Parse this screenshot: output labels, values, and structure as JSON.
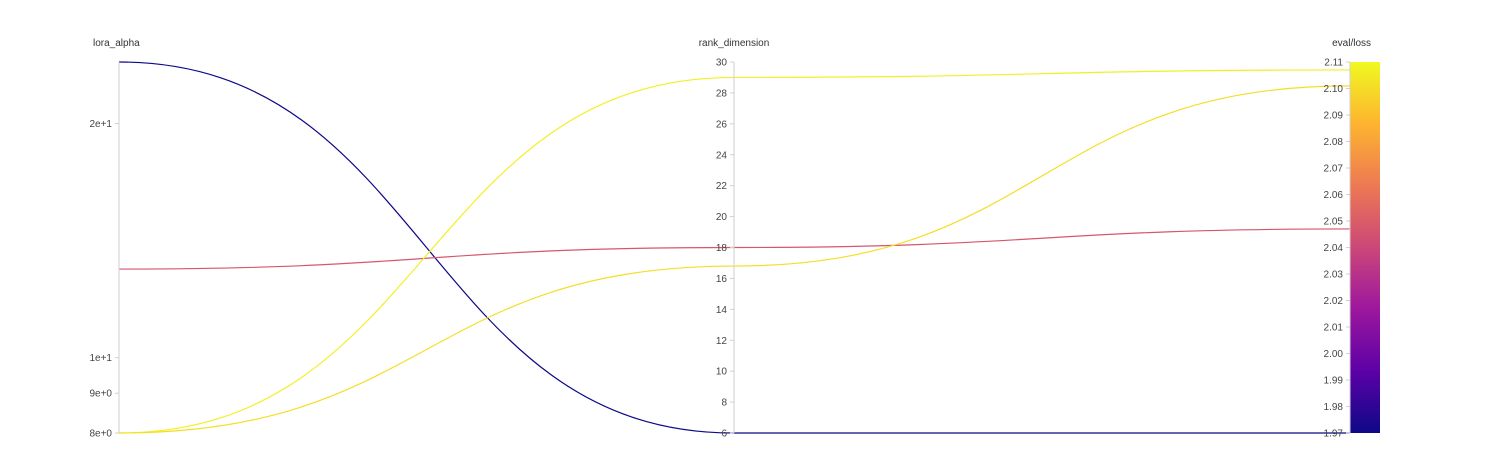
{
  "chart_data": {
    "type": "parallel_coordinates",
    "dimensions": [
      {
        "key": "lora_alpha",
        "label": "lora_alpha",
        "scale": "log",
        "range": [
          8,
          24
        ],
        "ticks": [
          {
            "value": 8,
            "label": "8e+0"
          },
          {
            "value": 9,
            "label": "9e+0"
          },
          {
            "value": 10,
            "label": "1e+1"
          },
          {
            "value": 20,
            "label": "2e+1"
          }
        ]
      },
      {
        "key": "rank_dimension",
        "label": "rank_dimension",
        "scale": "linear",
        "range": [
          6,
          30
        ],
        "ticks": [
          {
            "value": 6,
            "label": "6"
          },
          {
            "value": 8,
            "label": "8"
          },
          {
            "value": 10,
            "label": "10"
          },
          {
            "value": 12,
            "label": "12"
          },
          {
            "value": 14,
            "label": "14"
          },
          {
            "value": 16,
            "label": "16"
          },
          {
            "value": 18,
            "label": "18"
          },
          {
            "value": 20,
            "label": "20"
          },
          {
            "value": 22,
            "label": "22"
          },
          {
            "value": 24,
            "label": "24"
          },
          {
            "value": 26,
            "label": "26"
          },
          {
            "value": 28,
            "label": "28"
          },
          {
            "value": 30,
            "label": "30"
          }
        ]
      },
      {
        "key": "eval_loss",
        "label": "eval/loss",
        "scale": "linear",
        "range": [
          1.97,
          2.11
        ],
        "ticks": [
          {
            "value": 1.97,
            "label": "1.97"
          },
          {
            "value": 1.98,
            "label": "1.98"
          },
          {
            "value": 1.99,
            "label": "1.99"
          },
          {
            "value": 2.0,
            "label": "2.00"
          },
          {
            "value": 2.01,
            "label": "2.01"
          },
          {
            "value": 2.02,
            "label": "2.02"
          },
          {
            "value": 2.03,
            "label": "2.03"
          },
          {
            "value": 2.04,
            "label": "2.04"
          },
          {
            "value": 2.05,
            "label": "2.05"
          },
          {
            "value": 2.06,
            "label": "2.06"
          },
          {
            "value": 2.07,
            "label": "2.07"
          },
          {
            "value": 2.08,
            "label": "2.08"
          },
          {
            "value": 2.09,
            "label": "2.09"
          },
          {
            "value": 2.1,
            "label": "2.10"
          },
          {
            "value": 2.11,
            "label": "2.11"
          }
        ]
      }
    ],
    "runs": [
      {
        "lora_alpha": 24,
        "rank_dimension": 6,
        "eval_loss": 1.97
      },
      {
        "lora_alpha": 13,
        "rank_dimension": 18,
        "eval_loss": 2.047
      },
      {
        "lora_alpha": 8,
        "rank_dimension": 29,
        "eval_loss": 2.107
      },
      {
        "lora_alpha": 8,
        "rank_dimension": 16.8,
        "eval_loss": 2.101
      }
    ],
    "colorscale": {
      "dimension": "eval_loss",
      "stops": [
        "#0d0887",
        "#5c01a6",
        "#9c179e",
        "#cc4778",
        "#ed7953",
        "#fdb42f",
        "#f0f921"
      ]
    }
  }
}
